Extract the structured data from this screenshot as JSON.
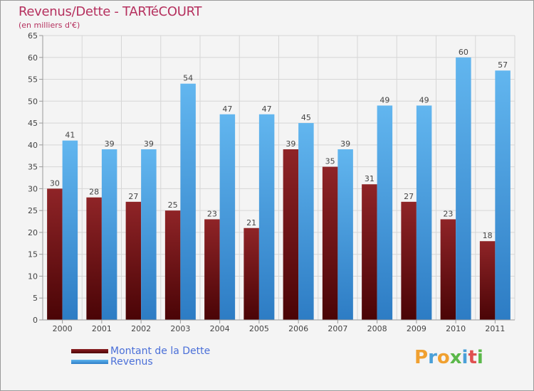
{
  "chart_data": {
    "type": "bar",
    "title": "Revenus/Dette - TARTéCOURT",
    "subtitle": "(en milliers d'€)",
    "categories": [
      "2000",
      "2001",
      "2002",
      "2003",
      "2004",
      "2005",
      "2006",
      "2007",
      "2008",
      "2009",
      "2010",
      "2011"
    ],
    "series": [
      {
        "name": "Montant de la Dette",
        "values": [
          30,
          28,
          27,
          25,
          23,
          21,
          39,
          35,
          31,
          27,
          23,
          18
        ]
      },
      {
        "name": "Revenus",
        "values": [
          41,
          39,
          39,
          54,
          47,
          47,
          45,
          39,
          49,
          49,
          60,
          57
        ]
      }
    ],
    "ylim": [
      0,
      65
    ],
    "yticks": [
      0,
      5,
      10,
      15,
      20,
      25,
      30,
      35,
      40,
      45,
      50,
      55,
      60,
      65
    ],
    "grid": true,
    "legend_position": "bottom-left",
    "colors": {
      "dette": "#6e1214",
      "revenus": "#4a9fe0"
    }
  },
  "logo": {
    "text": "Proxiti"
  }
}
